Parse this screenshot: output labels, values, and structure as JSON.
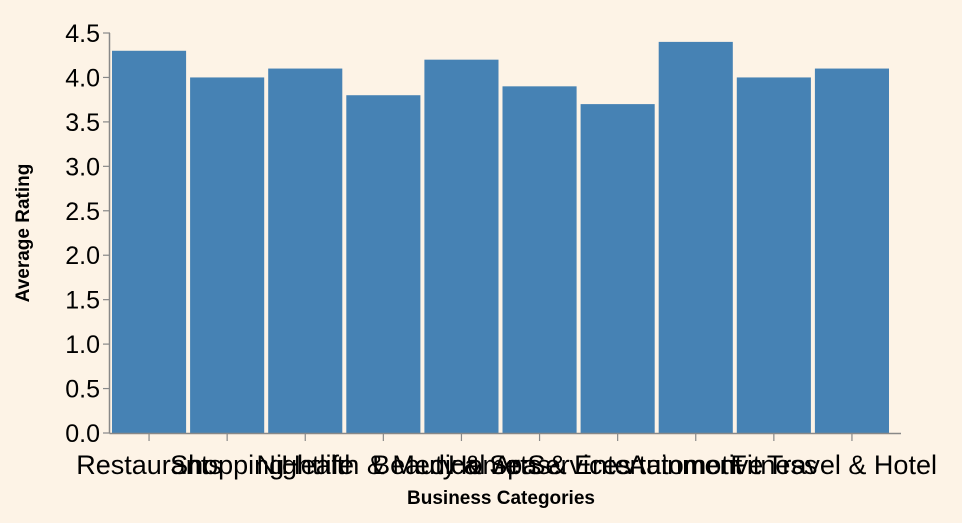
{
  "chart_data": {
    "type": "bar",
    "categories": [
      "Restaurants",
      "Shopping",
      "Nightlife",
      "Health & Medical",
      "Beauty & Spas",
      "Home Services",
      "Arts & Entertainment",
      "Automotive",
      "Fitness",
      "Travel & Hotel"
    ],
    "values": [
      4.3,
      4.0,
      4.1,
      3.8,
      4.2,
      3.9,
      3.7,
      4.4,
      4.0,
      4.1
    ],
    "xlabel": "Business Categories",
    "ylabel": "Average Rating",
    "ylim": [
      0,
      4.5
    ],
    "yticks": [
      "0.0",
      "0.5",
      "1.0",
      "1.5",
      "2.0",
      "2.5",
      "3.0",
      "3.5",
      "4.0",
      "4.5"
    ],
    "grid": false,
    "bar_color": "#4682b4",
    "background": "#fdf3e6",
    "axis_color": "#888888"
  }
}
